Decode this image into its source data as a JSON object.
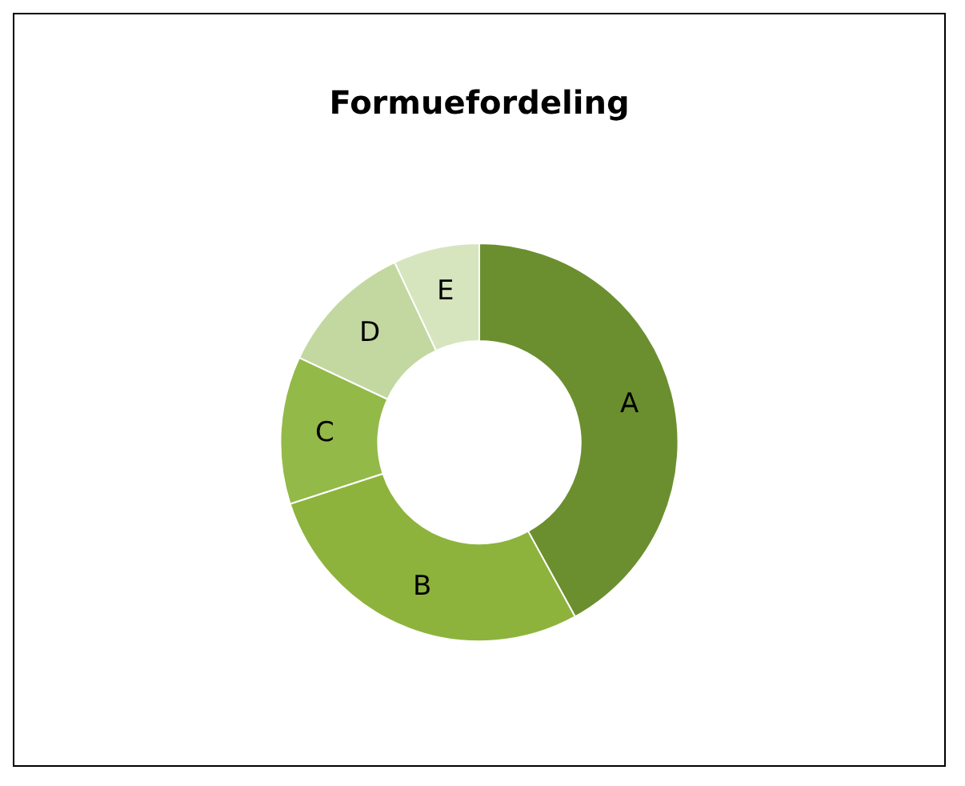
{
  "chart_data": {
    "type": "donut",
    "title": "Formuefordeling",
    "categories": [
      "A",
      "B",
      "C",
      "D",
      "E"
    ],
    "values": [
      42,
      28,
      12,
      11,
      7
    ],
    "colors": [
      "#6b8f2f",
      "#8db33d",
      "#93b948",
      "#c3d8a0",
      "#d7e5bf"
    ],
    "legend": false
  }
}
